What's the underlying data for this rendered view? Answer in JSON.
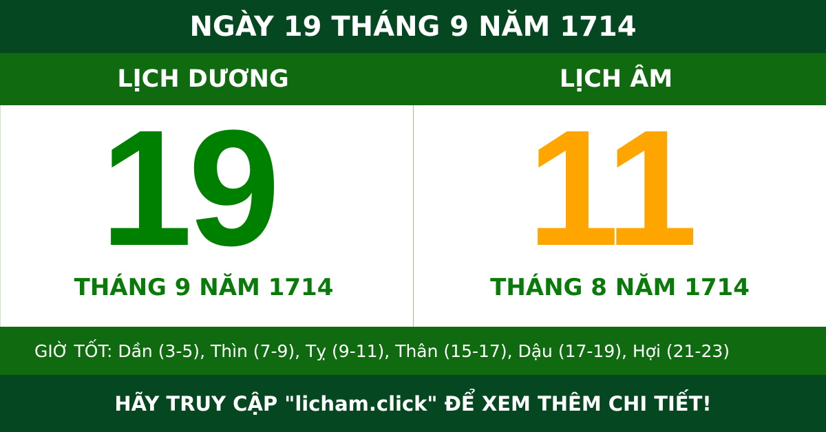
{
  "title": "NGÀY 19 THÁNG 9 NĂM 1714",
  "solar": {
    "heading": "LỊCH DƯƠNG",
    "day": "19",
    "month_year": "THÁNG 9 NĂM 1714"
  },
  "lunar": {
    "heading": "LỊCH ÂM",
    "day": "11",
    "month_year": "THÁNG 8 NĂM 1714"
  },
  "good_hours": "GIỜ TỐT: Dần (3-5), Thìn (7-9), Tỵ (9-11), Thân (15-17), Dậu (17-19), Hợi (21-23)",
  "footer": "HÃY TRUY CẬP \"licham.click\" ĐỂ XEM THÊM CHI TIẾT!",
  "colors": {
    "dark_green": "#044721",
    "band_green": "#106b10",
    "solar_day": "#008000",
    "lunar_day": "#ffa500"
  }
}
